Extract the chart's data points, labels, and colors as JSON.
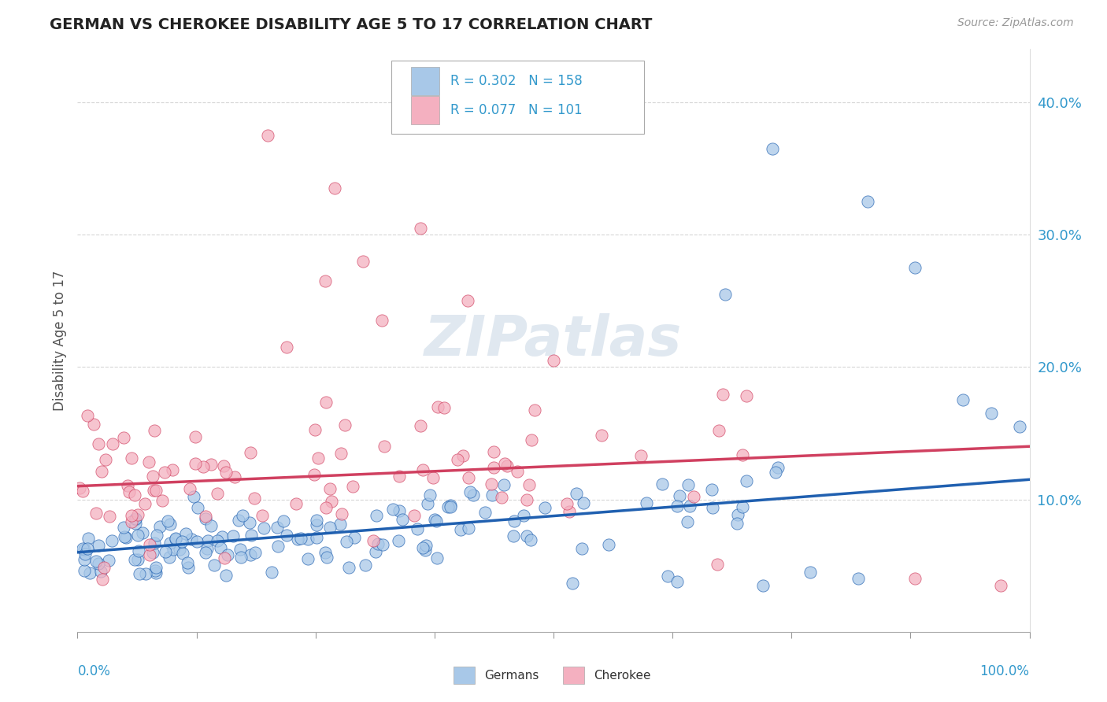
{
  "title": "GERMAN VS CHEROKEE DISABILITY AGE 5 TO 17 CORRELATION CHART",
  "source_text": "Source: ZipAtlas.com",
  "ylabel": "Disability Age 5 to 17",
  "xlim": [
    0.0,
    1.0
  ],
  "ylim": [
    0.0,
    0.44
  ],
  "yticks": [
    0.1,
    0.2,
    0.3,
    0.4
  ],
  "ytick_labels": [
    "10.0%",
    "20.0%",
    "30.0%",
    "40.0%"
  ],
  "german_color": "#a8c8e8",
  "german_line_color": "#2060b0",
  "cherokee_color": "#f4b0c0",
  "cherokee_line_color": "#d04060",
  "watermark": "ZIPatlas",
  "german_trend_x": [
    0.0,
    1.0
  ],
  "german_trend_y": [
    0.06,
    0.115
  ],
  "cherokee_trend_x": [
    0.0,
    1.0
  ],
  "cherokee_trend_y": [
    0.11,
    0.14
  ]
}
